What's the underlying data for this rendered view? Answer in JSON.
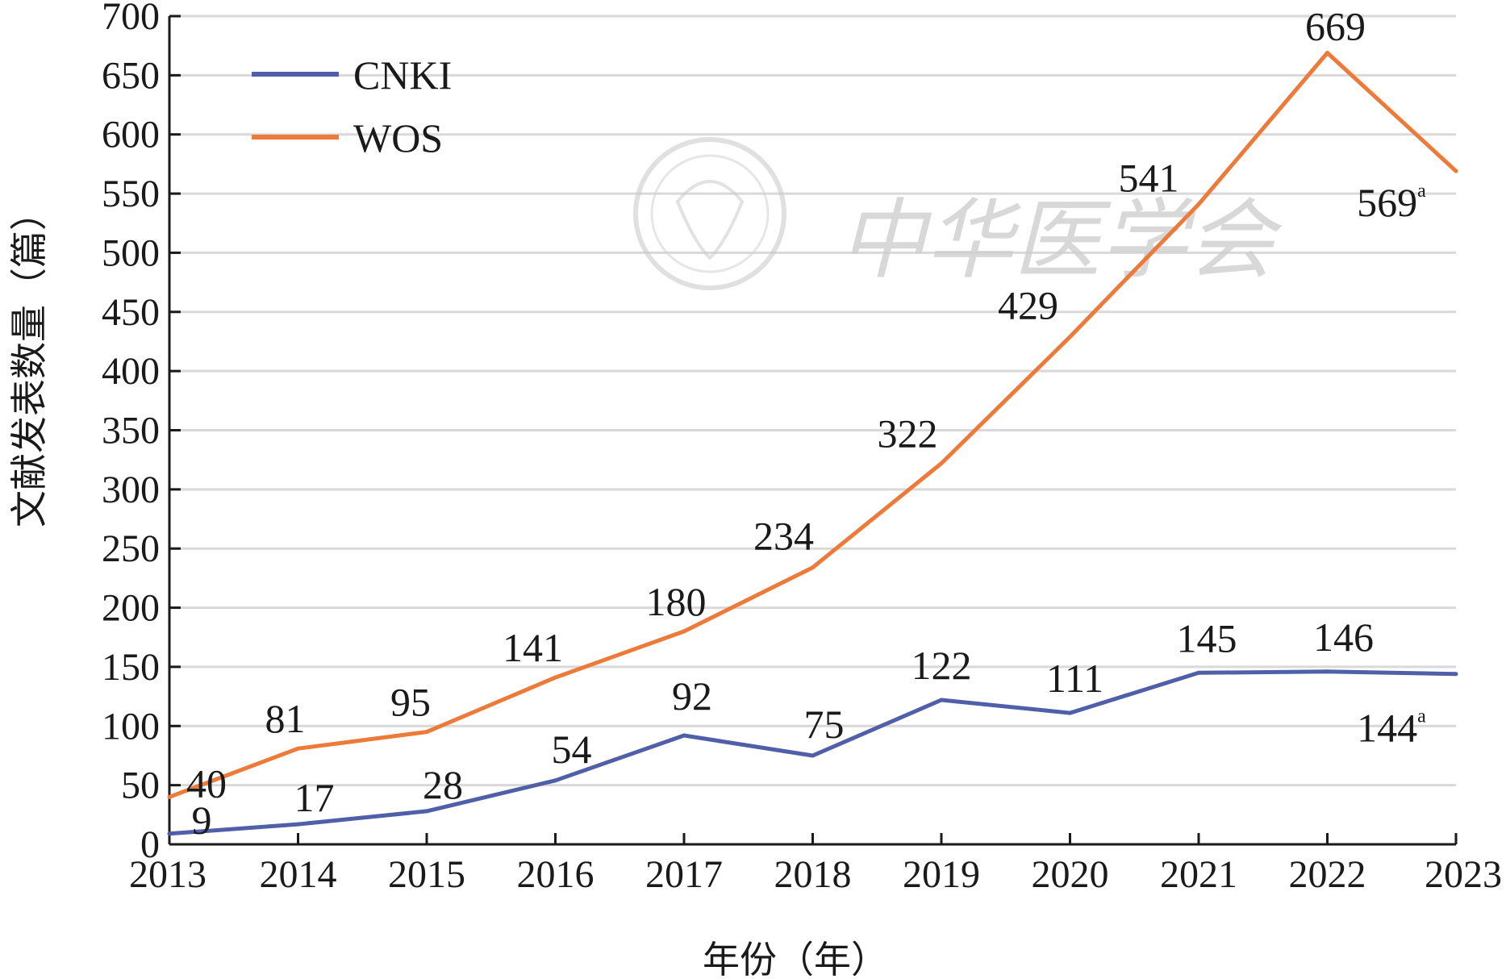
{
  "chart_data": {
    "type": "line",
    "title": "",
    "xlabel": "年份（年）",
    "ylabel": "文献发表数量（篇）",
    "categories": [
      "2013",
      "2014",
      "2015",
      "2016",
      "2017",
      "2018",
      "2019",
      "2020",
      "2021",
      "2022",
      "2023"
    ],
    "ylim": [
      0,
      700
    ],
    "yticks": [
      0,
      50,
      100,
      150,
      200,
      250,
      300,
      350,
      400,
      450,
      500,
      550,
      600,
      650,
      700
    ],
    "grid": true,
    "legend_position": "top-left",
    "series": [
      {
        "name": "CNKI",
        "color": "#4f5fa8",
        "values": [
          9,
          17,
          28,
          54,
          92,
          75,
          122,
          111,
          145,
          146,
          144
        ],
        "label_suffix_last": "a"
      },
      {
        "name": "WOS",
        "color": "#ee7a3a",
        "values": [
          40,
          81,
          95,
          141,
          180,
          234,
          322,
          429,
          541,
          669,
          569
        ],
        "label_suffix_last": "a"
      }
    ]
  },
  "watermark": {
    "text": "中华医学会",
    "color": "#cfcfcf"
  }
}
